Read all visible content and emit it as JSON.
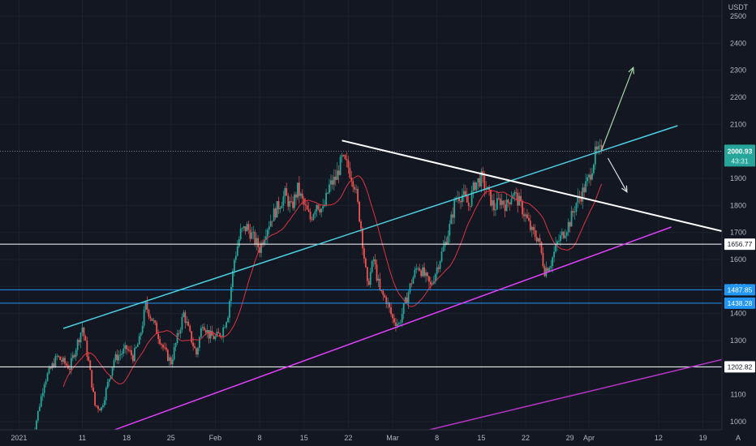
{
  "chart_data": {
    "type": "candlestick",
    "symbol_quote": "USDT",
    "y_ticks": [
      1000,
      1100,
      1200,
      1300,
      1400,
      1500,
      1600,
      1700,
      1800,
      1900,
      2000,
      2100,
      2200,
      2300,
      2400,
      2500
    ],
    "y_tick_labels": [
      "1000",
      "1100",
      "1200",
      "1300",
      "1400",
      "1500",
      "1600",
      "1700",
      "1800",
      "1900",
      "2000",
      "2100",
      "2200",
      "2300",
      "2400",
      "2500"
    ],
    "ylim": [
      970,
      2560
    ],
    "x_ticks": [
      {
        "day": 0,
        "label": "2021"
      },
      {
        "day": 10,
        "label": "11"
      },
      {
        "day": 17,
        "label": "18"
      },
      {
        "day": 24,
        "label": "25"
      },
      {
        "day": 31,
        "label": "Feb"
      },
      {
        "day": 38,
        "label": "8"
      },
      {
        "day": 45,
        "label": "15"
      },
      {
        "day": 52,
        "label": "22"
      },
      {
        "day": 59,
        "label": "Mar"
      },
      {
        "day": 66,
        "label": "8"
      },
      {
        "day": 73,
        "label": "15"
      },
      {
        "day": 80,
        "label": "22"
      },
      {
        "day": 87,
        "label": "29"
      },
      {
        "day": 90,
        "label": "Apr"
      },
      {
        "day": 101,
        "label": "12"
      },
      {
        "day": 108,
        "label": "19"
      }
    ],
    "xlim": [
      -3,
      111
    ],
    "price_path": [
      [
        2,
        920
      ],
      [
        4,
        1150
      ],
      [
        6,
        1240
      ],
      [
        8,
        1200
      ],
      [
        10,
        1350
      ],
      [
        11,
        1220
      ],
      [
        12,
        1060
      ],
      [
        13,
        1050
      ],
      [
        15,
        1230
      ],
      [
        17,
        1270
      ],
      [
        18,
        1240
      ],
      [
        19,
        1300
      ],
      [
        20,
        1430
      ],
      [
        21,
        1380
      ],
      [
        23,
        1260
      ],
      [
        24,
        1220
      ],
      [
        26,
        1400
      ],
      [
        27,
        1320
      ],
      [
        28,
        1250
      ],
      [
        29,
        1370
      ],
      [
        30,
        1320
      ],
      [
        31,
        1310
      ],
      [
        32,
        1330
      ],
      [
        33,
        1400
      ],
      [
        34,
        1600
      ],
      [
        35,
        1700
      ],
      [
        36,
        1720
      ],
      [
        37,
        1680
      ],
      [
        38,
        1640
      ],
      [
        39,
        1710
      ],
      [
        40,
        1760
      ],
      [
        41,
        1800
      ],
      [
        42,
        1840
      ],
      [
        43,
        1790
      ],
      [
        44,
        1860
      ],
      [
        45,
        1800
      ],
      [
        46,
        1750
      ],
      [
        47,
        1810
      ],
      [
        48,
        1780
      ],
      [
        49,
        1870
      ],
      [
        50,
        1900
      ],
      [
        51,
        1970
      ],
      [
        52,
        1940
      ],
      [
        53,
        1880
      ],
      [
        54,
        1720
      ],
      [
        55,
        1500
      ],
      [
        56,
        1600
      ],
      [
        57,
        1480
      ],
      [
        58,
        1450
      ],
      [
        59,
        1380
      ],
      [
        60,
        1360
      ],
      [
        61,
        1440
      ],
      [
        62,
        1520
      ],
      [
        63,
        1580
      ],
      [
        64,
        1540
      ],
      [
        65,
        1500
      ],
      [
        66,
        1570
      ],
      [
        67,
        1640
      ],
      [
        68,
        1720
      ],
      [
        69,
        1830
      ],
      [
        70,
        1840
      ],
      [
        71,
        1800
      ],
      [
        72,
        1880
      ],
      [
        73,
        1900
      ],
      [
        74,
        1850
      ],
      [
        75,
        1790
      ],
      [
        76,
        1820
      ],
      [
        77,
        1800
      ],
      [
        78,
        1850
      ],
      [
        79,
        1810
      ],
      [
        80,
        1760
      ],
      [
        81,
        1700
      ],
      [
        82,
        1680
      ],
      [
        83,
        1560
      ],
      [
        84,
        1590
      ],
      [
        85,
        1660
      ],
      [
        86,
        1700
      ],
      [
        87,
        1740
      ],
      [
        88,
        1810
      ],
      [
        89,
        1850
      ],
      [
        90,
        1900
      ],
      [
        91,
        1990
      ],
      [
        92,
        2000
      ]
    ],
    "horizontal_levels": [
      {
        "price": 1656.77,
        "label": "1656.77",
        "color": "#ffffff"
      },
      {
        "price": 1487.85,
        "label": "1487.85",
        "color": "#2196f3"
      },
      {
        "price": 1438.28,
        "label": "1438.28",
        "color": "#2196f3"
      },
      {
        "price": 1202.82,
        "label": "1202.82",
        "color": "#ffffff"
      }
    ],
    "trendlines": [
      {
        "color": "#4dd0e1",
        "from": [
          7,
          1345
        ],
        "to": [
          104,
          2095
        ]
      },
      {
        "color": "#ffffff",
        "from": [
          51,
          2040
        ],
        "to": [
          111,
          1705
        ]
      },
      {
        "color": "#e040fb",
        "from": [
          13,
          952
        ],
        "to": [
          103,
          1720
        ]
      },
      {
        "color": "#b533c5",
        "from": [
          63,
          960
        ],
        "to": [
          111,
          1230
        ]
      }
    ],
    "arrows": [
      {
        "color": "#a5d6a7",
        "from": [
          92,
          2005
        ],
        "to": [
          97,
          2310
        ]
      },
      {
        "color": "#e0e0e0",
        "from": [
          93,
          1975
        ],
        "to": [
          96,
          1850
        ]
      }
    ],
    "current_price": {
      "price": 2000.93,
      "label": "2000.93",
      "countdown": "43:31",
      "color": "#26a69a"
    },
    "axis_corner_label": "A",
    "grid": true,
    "candle_colors": {
      "up": "#26a69a",
      "down": "#ef5350",
      "ma": "#f23645"
    }
  }
}
